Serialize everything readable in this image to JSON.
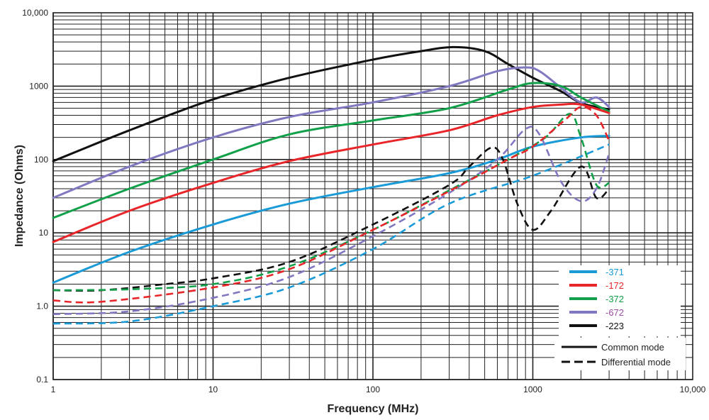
{
  "chart_data": {
    "type": "line",
    "xlabel": "Frequency (MHz)",
    "ylabel": "Impedance (Ohms)",
    "x_scale": "log",
    "y_scale": "log",
    "xlim": [
      1,
      10000
    ],
    "ylim": [
      0.1,
      10000
    ],
    "grid": true,
    "legend_placement": "bottom-right",
    "x_ticks": [
      {
        "v": 1,
        "label": "1"
      },
      {
        "v": 10,
        "label": "10"
      },
      {
        "v": 100,
        "label": "100"
      },
      {
        "v": 1000,
        "label": "1000"
      },
      {
        "v": 10000,
        "label": "10,000"
      }
    ],
    "y_ticks": [
      {
        "v": 10000,
        "label": "10,000"
      },
      {
        "v": 1000,
        "label": "1000"
      },
      {
        "v": 100,
        "label": "100"
      },
      {
        "v": 10,
        "label": "10"
      },
      {
        "v": 1,
        "label": "1.0"
      },
      {
        "v": 0.1,
        "label": "0.1"
      }
    ],
    "legend": {
      "parts": [
        {
          "label": "-371",
          "color": "#1a9ad6"
        },
        {
          "label": "-172",
          "color": "#e8262a"
        },
        {
          "label": "-372",
          "color": "#12a04a"
        },
        {
          "label": "-672",
          "color": "#8078c0"
        },
        {
          "label": "-223",
          "color": "#111111"
        }
      ],
      "modes": [
        {
          "label": "Common mode",
          "style": "solid"
        },
        {
          "label": "Differential mode",
          "style": "dashed"
        }
      ]
    },
    "series": [
      {
        "part": "-223",
        "mode": "common",
        "color": "#111111",
        "points": [
          [
            1,
            95
          ],
          [
            3,
            250
          ],
          [
            10,
            660
          ],
          [
            30,
            1300
          ],
          [
            100,
            2300
          ],
          [
            200,
            3000
          ],
          [
            320,
            3400
          ],
          [
            500,
            3000
          ],
          [
            700,
            2000
          ],
          [
            1000,
            1300
          ],
          [
            1500,
            850
          ],
          [
            2000,
            590
          ],
          [
            3000,
            480
          ]
        ]
      },
      {
        "part": "-672",
        "mode": "common",
        "color": "#8078c0",
        "points": [
          [
            1,
            30
          ],
          [
            3,
            80
          ],
          [
            10,
            200
          ],
          [
            30,
            380
          ],
          [
            100,
            600
          ],
          [
            300,
            1000
          ],
          [
            600,
            1600
          ],
          [
            900,
            1800
          ],
          [
            1100,
            1600
          ],
          [
            1500,
            950
          ],
          [
            2000,
            600
          ],
          [
            2500,
            700
          ],
          [
            3000,
            520
          ]
        ]
      },
      {
        "part": "-372",
        "mode": "common",
        "color": "#12a04a",
        "points": [
          [
            1,
            16
          ],
          [
            3,
            40
          ],
          [
            10,
            100
          ],
          [
            30,
            220
          ],
          [
            100,
            340
          ],
          [
            300,
            500
          ],
          [
            700,
            900
          ],
          [
            1000,
            1100
          ],
          [
            1500,
            1000
          ],
          [
            2000,
            700
          ],
          [
            3000,
            450
          ]
        ]
      },
      {
        "part": "-172",
        "mode": "common",
        "color": "#e8262a",
        "points": [
          [
            1,
            7.5
          ],
          [
            3,
            20
          ],
          [
            10,
            48
          ],
          [
            30,
            95
          ],
          [
            100,
            160
          ],
          [
            300,
            250
          ],
          [
            600,
            400
          ],
          [
            1000,
            520
          ],
          [
            1500,
            560
          ],
          [
            2000,
            560
          ],
          [
            3000,
            430
          ]
        ]
      },
      {
        "part": "-371",
        "mode": "common",
        "color": "#1a9ad6",
        "points": [
          [
            1,
            2.1
          ],
          [
            3,
            5.5
          ],
          [
            10,
            13
          ],
          [
            30,
            25
          ],
          [
            100,
            42
          ],
          [
            300,
            65
          ],
          [
            600,
            100
          ],
          [
            1000,
            150
          ],
          [
            2000,
            200
          ],
          [
            3000,
            210
          ]
        ]
      },
      {
        "part": "-223",
        "mode": "differential",
        "color": "#111111",
        "points": [
          [
            1,
            1.65
          ],
          [
            2,
            1.65
          ],
          [
            5,
            2
          ],
          [
            10,
            2.4
          ],
          [
            30,
            4
          ],
          [
            100,
            13
          ],
          [
            300,
            45
          ],
          [
            400,
            80
          ],
          [
            550,
            145
          ],
          [
            650,
            100
          ],
          [
            800,
            25
          ],
          [
            1000,
            11
          ],
          [
            1300,
            20
          ],
          [
            2000,
            80
          ],
          [
            2500,
            30
          ],
          [
            3000,
            40
          ]
        ]
      },
      {
        "part": "-672",
        "mode": "differential",
        "color": "#8078c0",
        "points": [
          [
            1,
            0.78
          ],
          [
            3,
            0.85
          ],
          [
            10,
            1.3
          ],
          [
            30,
            2.5
          ],
          [
            100,
            9
          ],
          [
            300,
            35
          ],
          [
            600,
            100
          ],
          [
            900,
            260
          ],
          [
            1100,
            220
          ],
          [
            1500,
            50
          ],
          [
            2000,
            27
          ],
          [
            2500,
            40
          ],
          [
            3000,
            120
          ]
        ]
      },
      {
        "part": "-372",
        "mode": "differential",
        "color": "#12a04a",
        "points": [
          [
            1,
            1.65
          ],
          [
            3,
            1.7
          ],
          [
            10,
            2
          ],
          [
            30,
            3.5
          ],
          [
            100,
            11
          ],
          [
            300,
            38
          ],
          [
            700,
            100
          ],
          [
            1200,
            200
          ],
          [
            1700,
            420
          ],
          [
            2000,
            200
          ],
          [
            2500,
            45
          ],
          [
            3000,
            48
          ]
        ]
      },
      {
        "part": "-172",
        "mode": "differential",
        "color": "#e8262a",
        "points": [
          [
            1,
            1.2
          ],
          [
            2,
            1.15
          ],
          [
            10,
            1.8
          ],
          [
            30,
            3.2
          ],
          [
            100,
            11
          ],
          [
            300,
            37
          ],
          [
            700,
            100
          ],
          [
            1000,
            150
          ],
          [
            1600,
            350
          ],
          [
            2000,
            520
          ],
          [
            2500,
            400
          ],
          [
            3000,
            180
          ]
        ]
      },
      {
        "part": "-371",
        "mode": "differential",
        "color": "#1a9ad6",
        "points": [
          [
            1,
            0.58
          ],
          [
            3,
            0.62
          ],
          [
            10,
            1
          ],
          [
            30,
            1.8
          ],
          [
            100,
            6
          ],
          [
            300,
            25
          ],
          [
            1000,
            60
          ],
          [
            3000,
            160
          ]
        ]
      }
    ]
  }
}
